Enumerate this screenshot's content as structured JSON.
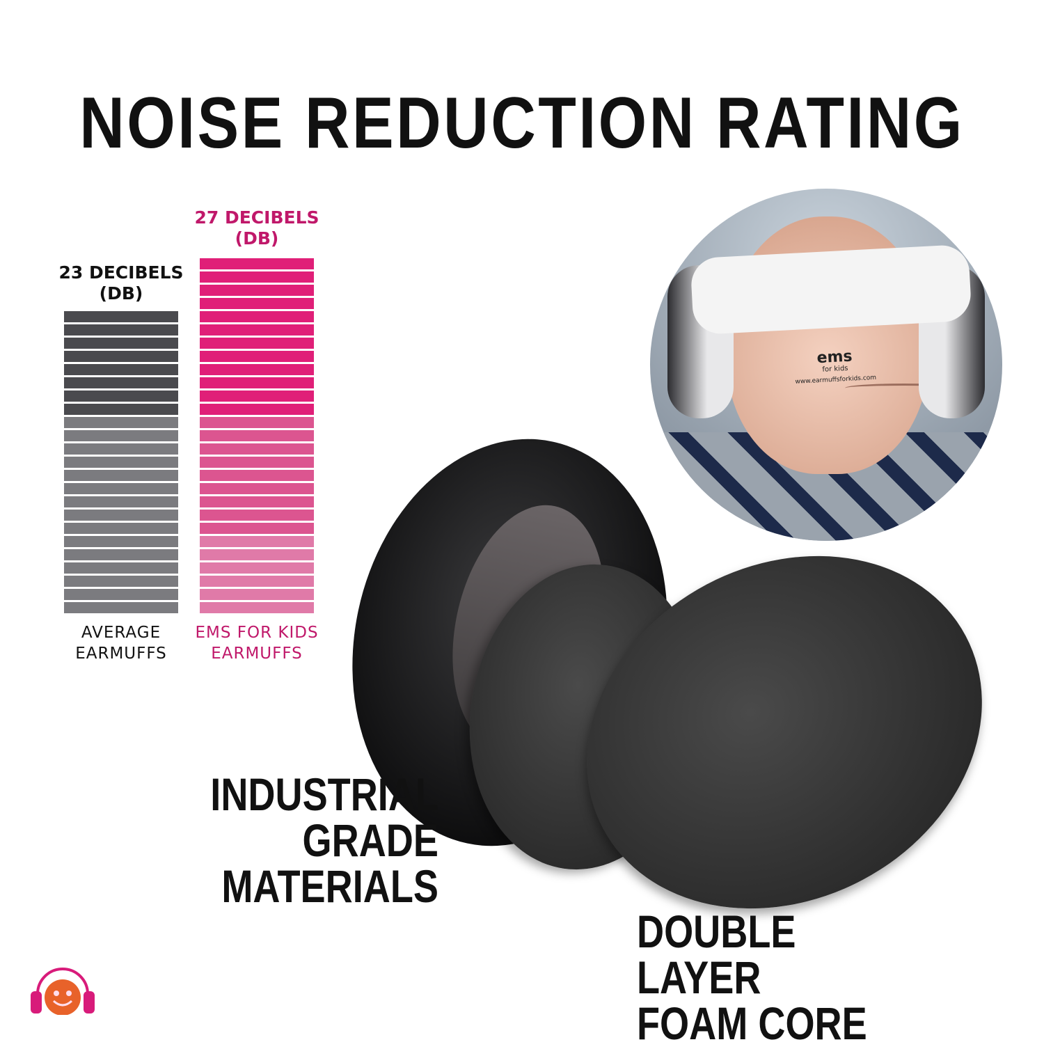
{
  "title": "NOISE REDUCTION RATING",
  "chart_data": {
    "type": "bar",
    "categories": [
      "AVERAGE EARMUFFS",
      "EMS FOR KIDS EARMUFFS"
    ],
    "values": [
      23,
      27
    ],
    "unit": "DECIBELS (DB)",
    "data_labels": [
      "23 DECIBELS (DB)",
      "27 DECIBELS (DB)"
    ],
    "colors": {
      "average_dark": "#4a4a4e",
      "average_light": "#7b7b7f",
      "ems_dark": "#e01f78",
      "ems_mid": "#dc5590",
      "ems_light": "#e07aa8"
    },
    "label_colors": {
      "average": "#111111",
      "ems": "#c0186a"
    }
  },
  "bars": [
    {
      "label_line1": "23 DECIBELS",
      "label_line2": "(DB)",
      "cat_line1": "AVERAGE",
      "cat_line2": "EARMUFFS"
    },
    {
      "label_line1": "27 DECIBELS",
      "label_line2": "(DB)",
      "cat_line1": "EMS FOR KIDS",
      "cat_line2": "EARMUFFS"
    }
  ],
  "photo": {
    "brand": "ems",
    "brand_sub": "for kids",
    "url": "www.earmuffsforkids.com"
  },
  "captions": {
    "materials_line1": "INDUSTRIAL",
    "materials_line2": "GRADE MATERIALS",
    "foam_line1": "DOUBLE LAYER",
    "foam_line2": "FOAM CORE"
  },
  "logo": {
    "icon": "smiley-headphones-icon",
    "colors": {
      "face": "#e8622a",
      "headphones": "#d81b7a"
    }
  }
}
